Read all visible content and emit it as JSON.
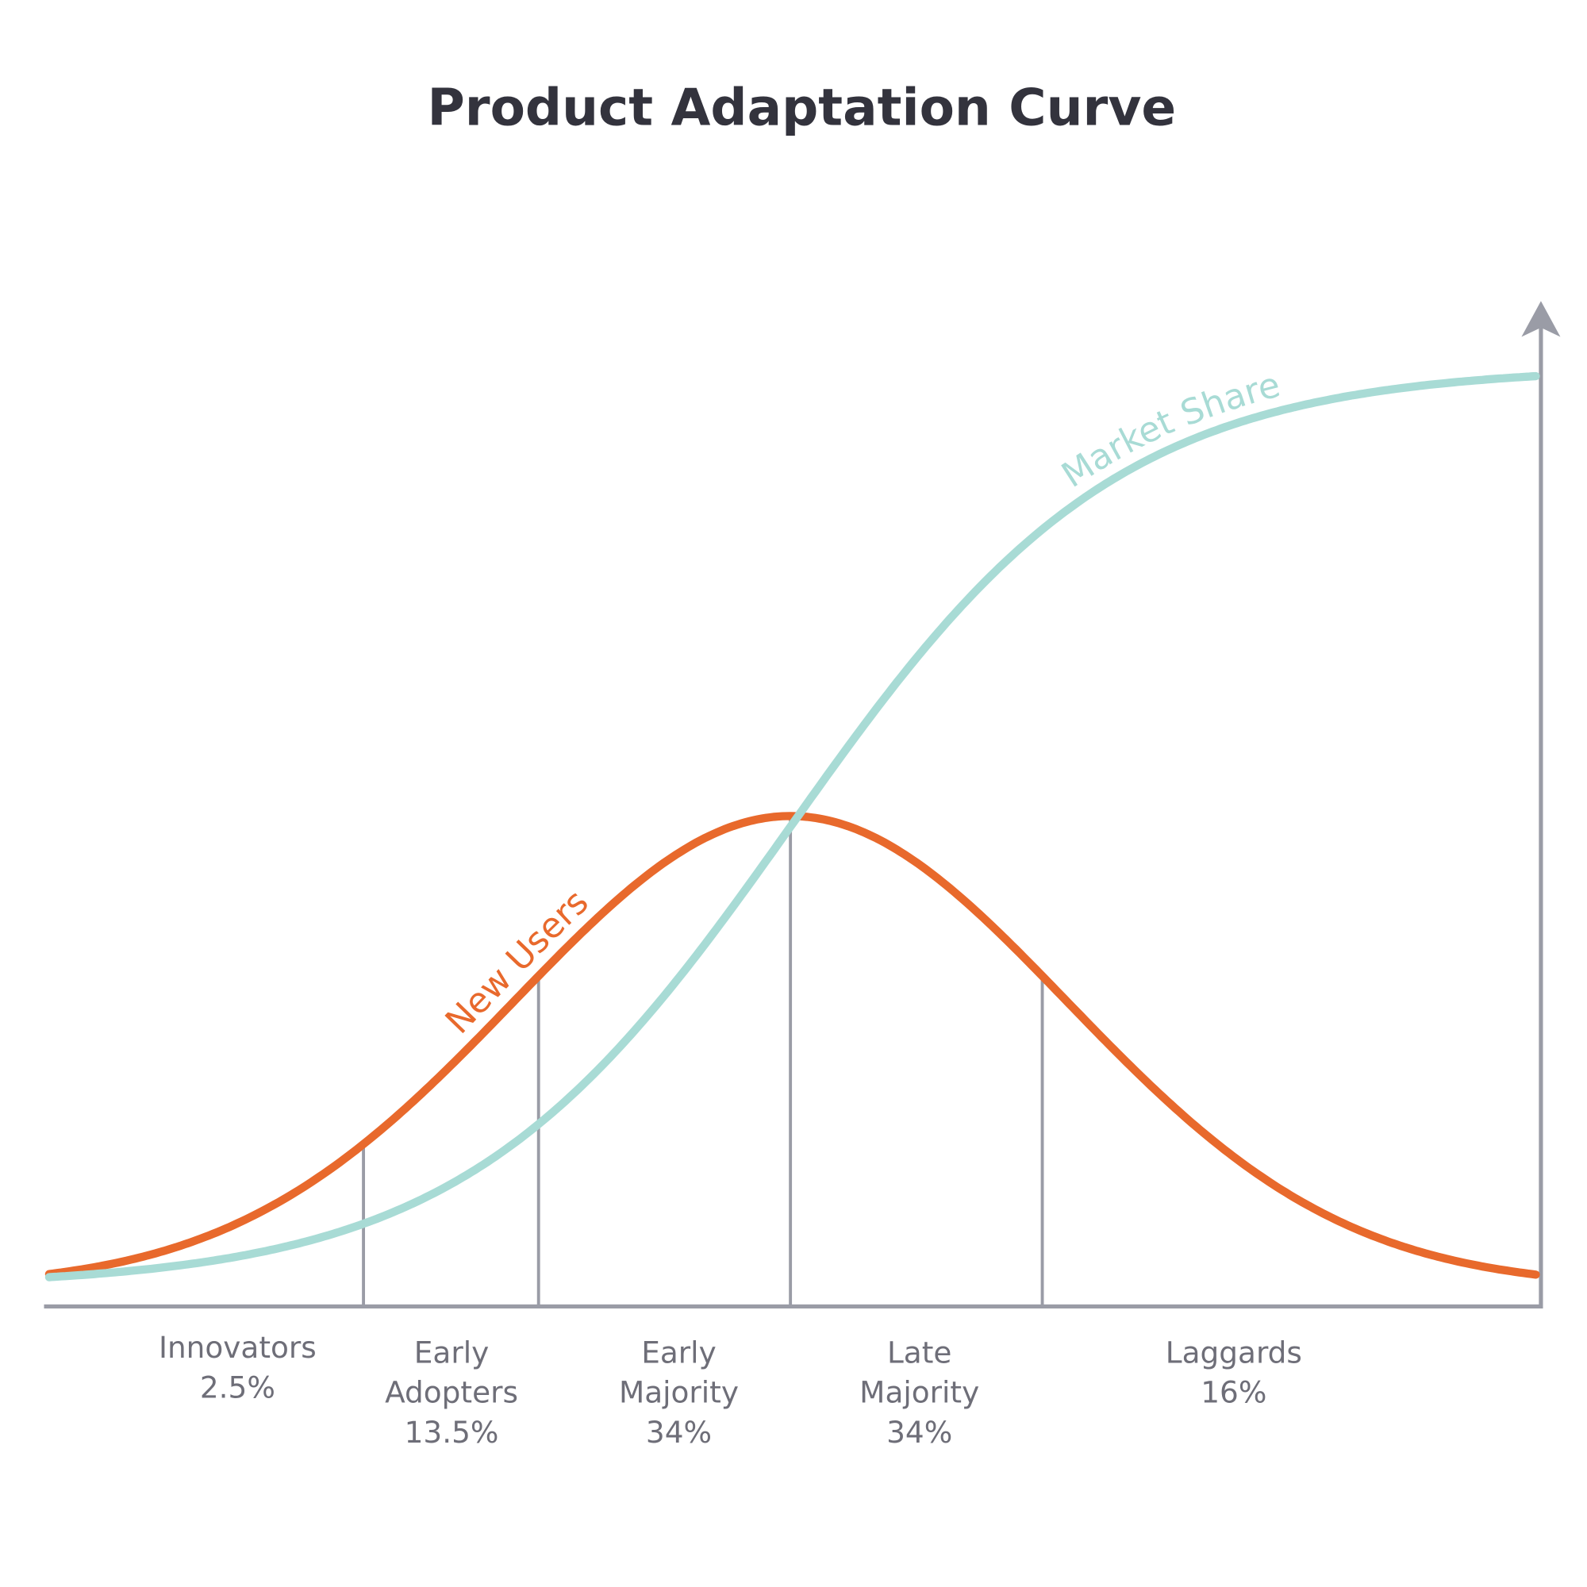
{
  "chart_data": {
    "type": "line",
    "title": "Product Adaptation Curve",
    "xlabel": "",
    "ylabel": "",
    "grid": false,
    "legend": "none",
    "categories": [
      {
        "lines": [
          "Innovators",
          "2.5%"
        ],
        "name": "Innovators",
        "percent": 2.5
      },
      {
        "lines": [
          "Early",
          "Adopters",
          "13.5%"
        ],
        "name": "Early Adopters",
        "percent": 13.5
      },
      {
        "lines": [
          "Early",
          "Majority",
          "34%"
        ],
        "name": "Early Majority",
        "percent": 34
      },
      {
        "lines": [
          "Late",
          "Majority",
          "34%"
        ],
        "name": "Late Majority",
        "percent": 34
      },
      {
        "lines": [
          "Laggards",
          "16%"
        ],
        "name": "Laggards",
        "percent": 16
      }
    ],
    "series": [
      {
        "name": "New Users",
        "shape": "bell",
        "color": "#e8692c"
      },
      {
        "name": "Market Share",
        "shape": "s-curve",
        "color": "#a8dbd5"
      }
    ],
    "axis_color": "#9a9ca6"
  }
}
